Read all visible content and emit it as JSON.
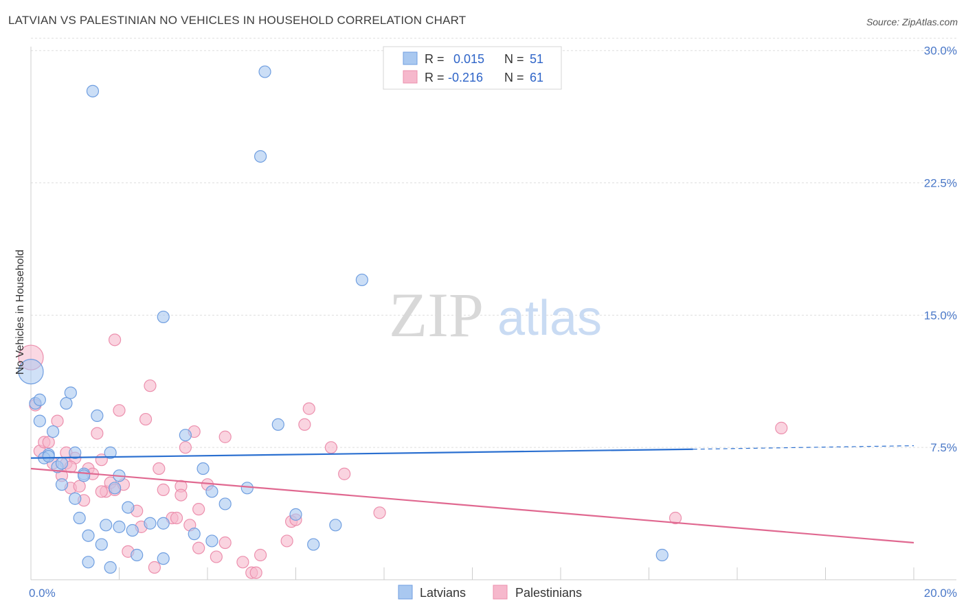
{
  "title": "LATVIAN VS PALESTINIAN NO VEHICLES IN HOUSEHOLD CORRELATION CHART",
  "source": "Source: ZipAtlas.com",
  "watermark": {
    "zip": "ZIP",
    "atlas": "atlas"
  },
  "colors": {
    "latvian_fill": "#a9c8f0",
    "latvian_stroke": "#6f9ee0",
    "latvian_line": "#2a6fd0",
    "palestinian_fill": "#f6b8cc",
    "palestinian_stroke": "#ec8fad",
    "palestinian_line": "#e06890",
    "grid": "#dedede",
    "axis_text": "#4a78c8"
  },
  "legend": {
    "rows": [
      {
        "r_label": "R =",
        "r_value": "0.015",
        "n_label": "N =",
        "n_value": "51"
      },
      {
        "r_label": "R =",
        "r_value": "-0.216",
        "n_label": "N =",
        "n_value": "61"
      }
    ]
  },
  "chart_data": {
    "type": "scatter",
    "title": "LATVIAN VS PALESTINIAN NO VEHICLES IN HOUSEHOLD CORRELATION CHART",
    "xlabel": "",
    "ylabel": "No Vehicles in Household",
    "xlim": [
      0,
      20
    ],
    "ylim": [
      0,
      31
    ],
    "x_tick_labels": [
      {
        "value": 0,
        "label": "0.0%"
      },
      {
        "value": 20,
        "label": "20.0%"
      }
    ],
    "y_tick_labels": [
      {
        "value": 7.5,
        "label": "7.5%"
      },
      {
        "value": 15,
        "label": "15.0%"
      },
      {
        "value": 22.5,
        "label": "22.5%"
      },
      {
        "value": 30,
        "label": "30.0%"
      }
    ],
    "series": [
      {
        "name": "Latvians",
        "trend": {
          "x": [
            0,
            15
          ],
          "y": [
            6.9,
            7.4
          ],
          "dashed_to": [
            20,
            7.6
          ]
        },
        "points": [
          {
            "x": 0.0,
            "y": 11.8,
            "big": true
          },
          {
            "x": 0.1,
            "y": 10.0
          },
          {
            "x": 0.2,
            "y": 10.2
          },
          {
            "x": 0.2,
            "y": 9.0
          },
          {
            "x": 0.4,
            "y": 7.1
          },
          {
            "x": 0.3,
            "y": 6.9
          },
          {
            "x": 0.5,
            "y": 8.4
          },
          {
            "x": 0.6,
            "y": 6.4
          },
          {
            "x": 0.7,
            "y": 6.6
          },
          {
            "x": 0.7,
            "y": 5.4
          },
          {
            "x": 0.8,
            "y": 10.0
          },
          {
            "x": 0.9,
            "y": 10.6
          },
          {
            "x": 1.0,
            "y": 7.2
          },
          {
            "x": 1.0,
            "y": 4.6
          },
          {
            "x": 1.1,
            "y": 3.5
          },
          {
            "x": 1.2,
            "y": 6.0
          },
          {
            "x": 1.3,
            "y": 2.5
          },
          {
            "x": 1.3,
            "y": 1.0
          },
          {
            "x": 1.4,
            "y": 27.7
          },
          {
            "x": 1.5,
            "y": 9.3
          },
          {
            "x": 1.6,
            "y": 2.0
          },
          {
            "x": 1.7,
            "y": 3.1
          },
          {
            "x": 1.8,
            "y": 0.7
          },
          {
            "x": 1.8,
            "y": 7.2
          },
          {
            "x": 1.9,
            "y": 5.2
          },
          {
            "x": 2.0,
            "y": 5.9
          },
          {
            "x": 2.0,
            "y": 3.0
          },
          {
            "x": 2.2,
            "y": 4.1
          },
          {
            "x": 2.3,
            "y": 2.8
          },
          {
            "x": 2.4,
            "y": 1.4
          },
          {
            "x": 2.7,
            "y": 3.2
          },
          {
            "x": 3.0,
            "y": 14.9
          },
          {
            "x": 3.0,
            "y": 1.2
          },
          {
            "x": 3.0,
            "y": 3.2
          },
          {
            "x": 3.5,
            "y": 8.2
          },
          {
            "x": 3.7,
            "y": 2.6
          },
          {
            "x": 3.9,
            "y": 6.3
          },
          {
            "x": 4.1,
            "y": 5.0
          },
          {
            "x": 4.1,
            "y": 2.2
          },
          {
            "x": 4.4,
            "y": 4.3
          },
          {
            "x": 4.9,
            "y": 5.2
          },
          {
            "x": 5.2,
            "y": 24.0
          },
          {
            "x": 5.3,
            "y": 28.8
          },
          {
            "x": 5.6,
            "y": 8.8
          },
          {
            "x": 6.0,
            "y": 3.7
          },
          {
            "x": 6.4,
            "y": 2.0
          },
          {
            "x": 6.9,
            "y": 3.1
          },
          {
            "x": 7.5,
            "y": 17.0
          },
          {
            "x": 14.3,
            "y": 1.4
          },
          {
            "x": 0.4,
            "y": 7.0
          },
          {
            "x": 1.2,
            "y": 5.9
          }
        ]
      },
      {
        "name": "Palestinians",
        "trend": {
          "x": [
            0,
            20
          ],
          "y": [
            6.3,
            2.1
          ]
        },
        "points": [
          {
            "x": 0.0,
            "y": 12.6,
            "big": true
          },
          {
            "x": 0.1,
            "y": 9.9
          },
          {
            "x": 0.2,
            "y": 7.3
          },
          {
            "x": 0.3,
            "y": 7.8
          },
          {
            "x": 0.4,
            "y": 7.8
          },
          {
            "x": 0.5,
            "y": 6.6
          },
          {
            "x": 0.6,
            "y": 9.0
          },
          {
            "x": 0.7,
            "y": 5.9
          },
          {
            "x": 0.8,
            "y": 7.2
          },
          {
            "x": 0.8,
            "y": 6.6
          },
          {
            "x": 0.9,
            "y": 5.2
          },
          {
            "x": 1.0,
            "y": 6.9
          },
          {
            "x": 1.1,
            "y": 5.3
          },
          {
            "x": 1.2,
            "y": 4.5
          },
          {
            "x": 1.3,
            "y": 6.3
          },
          {
            "x": 1.4,
            "y": 6.0
          },
          {
            "x": 1.5,
            "y": 8.3
          },
          {
            "x": 1.6,
            "y": 6.8
          },
          {
            "x": 1.7,
            "y": 5.0
          },
          {
            "x": 1.8,
            "y": 5.5
          },
          {
            "x": 1.9,
            "y": 5.1
          },
          {
            "x": 1.9,
            "y": 13.6
          },
          {
            "x": 2.0,
            "y": 9.6
          },
          {
            "x": 2.1,
            "y": 5.4
          },
          {
            "x": 2.2,
            "y": 1.6
          },
          {
            "x": 2.4,
            "y": 3.9
          },
          {
            "x": 2.5,
            "y": 3.0
          },
          {
            "x": 2.6,
            "y": 9.1
          },
          {
            "x": 2.7,
            "y": 11.0
          },
          {
            "x": 2.8,
            "y": 0.7
          },
          {
            "x": 2.9,
            "y": 6.3
          },
          {
            "x": 3.0,
            "y": 5.1
          },
          {
            "x": 3.2,
            "y": 3.5
          },
          {
            "x": 3.3,
            "y": 3.5
          },
          {
            "x": 3.4,
            "y": 5.3
          },
          {
            "x": 3.4,
            "y": 4.8
          },
          {
            "x": 3.5,
            "y": 7.5
          },
          {
            "x": 3.6,
            "y": 3.1
          },
          {
            "x": 3.7,
            "y": 8.4
          },
          {
            "x": 3.8,
            "y": 1.8
          },
          {
            "x": 3.8,
            "y": 4.0
          },
          {
            "x": 4.0,
            "y": 5.4
          },
          {
            "x": 4.2,
            "y": 1.3
          },
          {
            "x": 4.4,
            "y": 8.1
          },
          {
            "x": 4.4,
            "y": 2.1
          },
          {
            "x": 4.8,
            "y": 1.0
          },
          {
            "x": 5.0,
            "y": 0.4
          },
          {
            "x": 5.1,
            "y": 0.4
          },
          {
            "x": 5.2,
            "y": 1.4
          },
          {
            "x": 5.8,
            "y": 2.2
          },
          {
            "x": 5.9,
            "y": 3.3
          },
          {
            "x": 6.0,
            "y": 3.4
          },
          {
            "x": 6.2,
            "y": 8.8
          },
          {
            "x": 6.3,
            "y": 9.7
          },
          {
            "x": 6.8,
            "y": 7.5
          },
          {
            "x": 7.1,
            "y": 6.0
          },
          {
            "x": 7.9,
            "y": 3.8
          },
          {
            "x": 14.6,
            "y": 3.5
          },
          {
            "x": 17.0,
            "y": 8.6
          },
          {
            "x": 0.9,
            "y": 6.4
          },
          {
            "x": 1.6,
            "y": 5.0
          }
        ]
      }
    ]
  }
}
